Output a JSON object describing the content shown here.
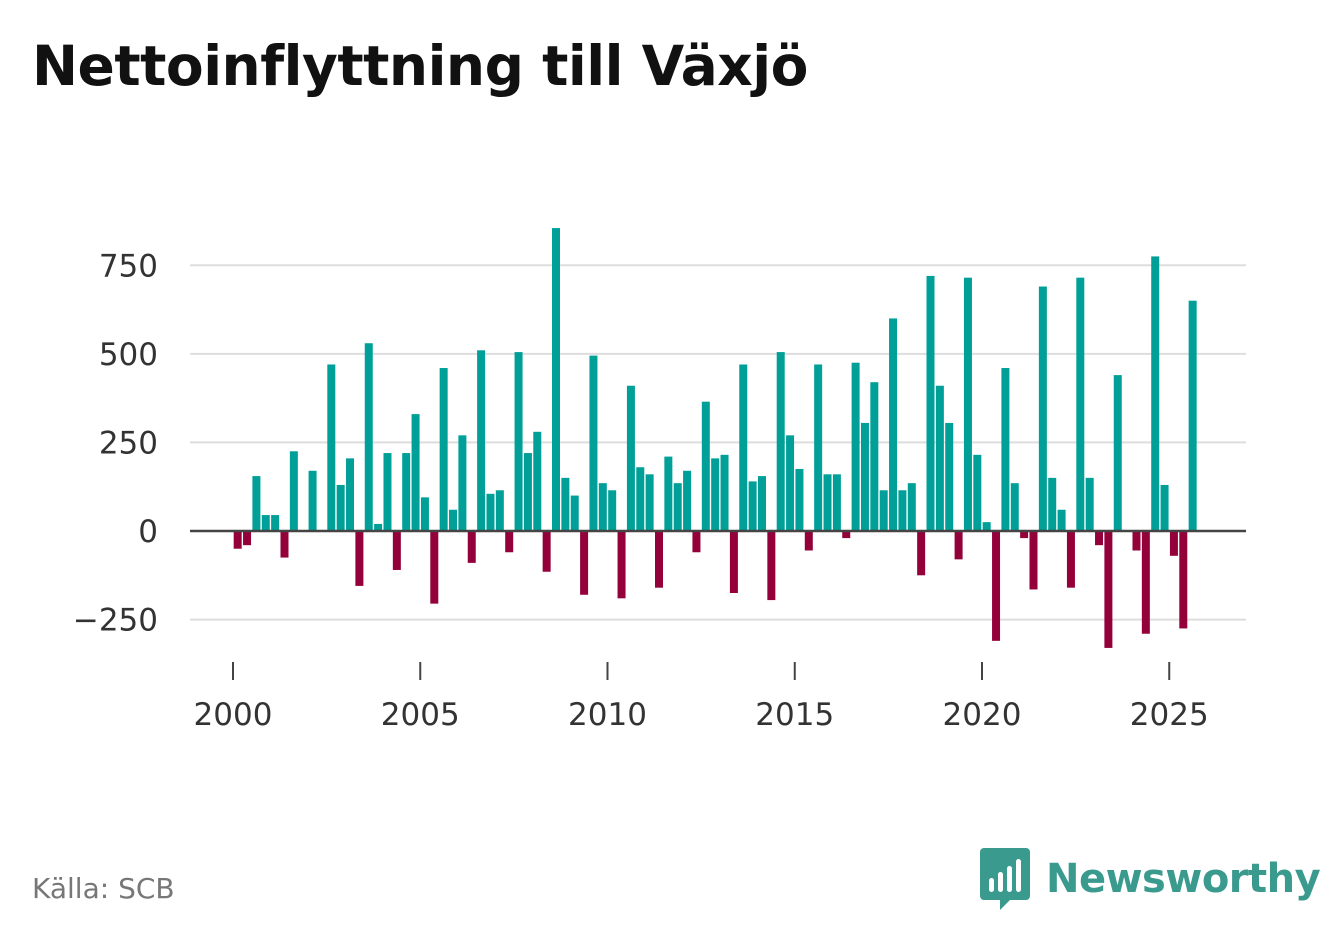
{
  "title": "Nettoinflyttning till Växjö",
  "source": "Källa: SCB",
  "brand": {
    "name": "Newsworthy",
    "icon": "bar-chart-speech-bubble-icon",
    "color": "#3a9a8e"
  },
  "colors": {
    "positive": "#00a098",
    "negative": "#940039",
    "grid": "#dddddd",
    "zero_line": "#444444"
  },
  "chart_data": {
    "type": "bar",
    "title": "Nettoinflyttning till Växjö",
    "xlabel": "",
    "ylabel": "",
    "frequency": "quarterly",
    "start": {
      "year": 2000,
      "quarter": 1
    },
    "xlim": [
      1999.6,
      2026.6
    ],
    "ylim": [
      -340,
      900
    ],
    "x_ticks": [
      2000,
      2005,
      2010,
      2015,
      2020,
      2025
    ],
    "y_ticks": [
      -250,
      0,
      250,
      500,
      750
    ],
    "y_tick_labels": [
      "−250",
      "0",
      "250",
      "500",
      "750"
    ],
    "values": [
      -50,
      -40,
      155,
      45,
      45,
      -75,
      225,
      0,
      170,
      0,
      470,
      130,
      205,
      -155,
      530,
      20,
      220,
      -110,
      220,
      330,
      95,
      -205,
      460,
      60,
      270,
      -90,
      510,
      105,
      115,
      -60,
      505,
      220,
      280,
      -115,
      855,
      150,
      100,
      -180,
      495,
      135,
      115,
      -190,
      410,
      180,
      160,
      -160,
      210,
      135,
      170,
      -60,
      365,
      205,
      215,
      -175,
      470,
      140,
      155,
      -195,
      505,
      270,
      175,
      -55,
      470,
      160,
      160,
      -20,
      475,
      305,
      420,
      115,
      600,
      115,
      135,
      -125,
      720,
      410,
      305,
      -80,
      715,
      215,
      25,
      -310,
      460,
      135,
      -20,
      -165,
      690,
      150,
      60,
      -160,
      715,
      150,
      -40,
      -330,
      440,
      0,
      -55,
      -290,
      775,
      130,
      -70,
      -275,
      650
    ]
  }
}
